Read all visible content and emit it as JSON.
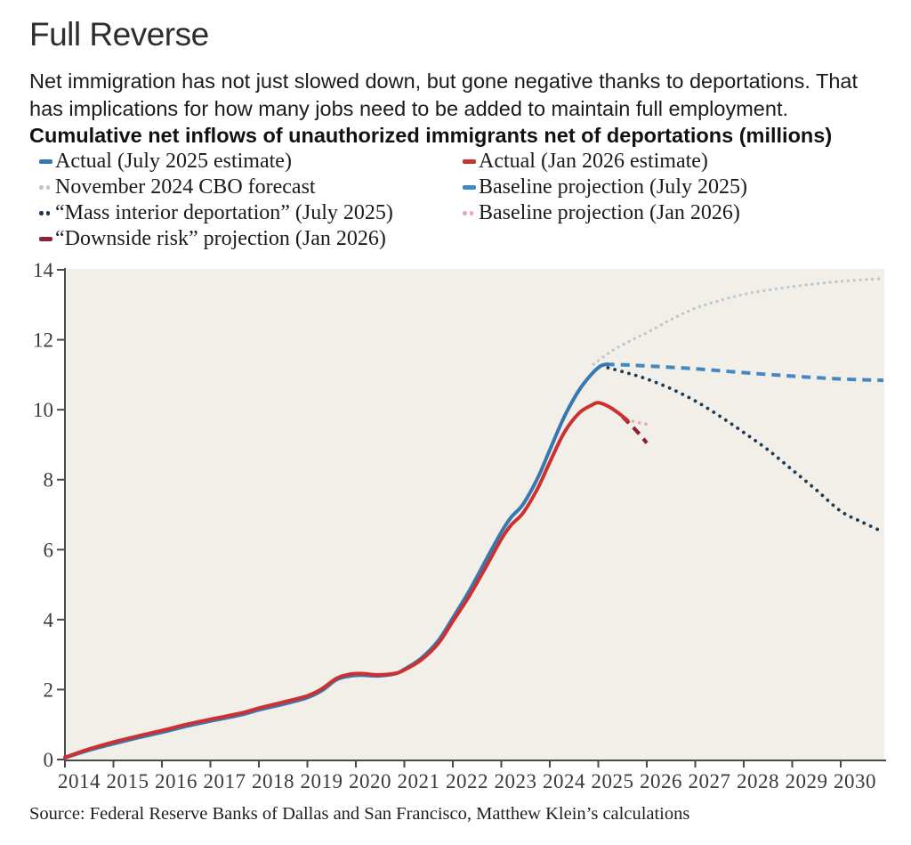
{
  "header": {
    "title": "Full Reverse",
    "subtitle_lines": [
      "Net immigration has not just slowed down, but gone negative thanks to deportations. That",
      "has implications for how many jobs need to be added to maintain full employment."
    ],
    "chart_heading": "Cumulative net inflows of unauthorized immigrants net of deportations (millions)"
  },
  "legend": {
    "left": [
      "actual_jul25",
      "cbo_nov24",
      "mass_deport_jul25",
      "downside_jan26"
    ],
    "right": [
      "actual_jan26",
      "baseline_jul25",
      "baseline_jan26"
    ]
  },
  "source": "Source: Federal Reserve Banks of Dallas and San Francisco, Matthew Klein’s calculations",
  "chart_data": {
    "type": "line",
    "title": "Cumulative net inflows of unauthorized immigrants net of deportations (millions)",
    "xlabel": "",
    "ylabel": "millions",
    "xlim": [
      2014,
      2030.9
    ],
    "ylim": [
      0,
      14
    ],
    "grid": false,
    "legend_position": "top-left, two columns",
    "plot_bg": "#f1efe7",
    "axis_color": "#4a4a4a",
    "y_ticks": [
      0,
      2,
      4,
      6,
      8,
      10,
      12,
      14
    ],
    "x_ticks": [
      2014,
      2015,
      2016,
      2017,
      2018,
      2019,
      2020,
      2021,
      2022,
      2023,
      2024,
      2025,
      2026,
      2027,
      2028,
      2029,
      2030
    ],
    "series": [
      {
        "id": "cbo_nov24",
        "name": "November 2024 CBO forecast",
        "color": "#b7c8d4",
        "style": "dotted",
        "width": 3.2,
        "points": [
          [
            2024.9,
            11.3
          ],
          [
            2025.3,
            11.7
          ],
          [
            2025.7,
            12.0
          ],
          [
            2026,
            12.2
          ],
          [
            2026.5,
            12.58
          ],
          [
            2027,
            12.9
          ],
          [
            2027.5,
            13.12
          ],
          [
            2028,
            13.3
          ],
          [
            2028.5,
            13.42
          ],
          [
            2029,
            13.52
          ],
          [
            2029.5,
            13.6
          ],
          [
            2030,
            13.67
          ],
          [
            2030.5,
            13.72
          ],
          [
            2030.88,
            13.75
          ]
        ]
      },
      {
        "id": "mass_deport_jul25",
        "name": "“Mass interior deportation” (July 2025)",
        "color": "#1c3a55",
        "style": "dotted",
        "width": 3.8,
        "points": [
          [
            2025.2,
            11.2
          ],
          [
            2025.6,
            11.05
          ],
          [
            2026,
            10.88
          ],
          [
            2026.5,
            10.6
          ],
          [
            2027,
            10.25
          ],
          [
            2027.5,
            9.82
          ],
          [
            2028,
            9.35
          ],
          [
            2028.5,
            8.85
          ],
          [
            2029,
            8.28
          ],
          [
            2029.5,
            7.7
          ],
          [
            2030,
            7.1
          ],
          [
            2030.45,
            6.78
          ],
          [
            2030.88,
            6.5
          ]
        ]
      },
      {
        "id": "baseline_jul25",
        "name": "Baseline projection (July 2025)",
        "color": "#4289c4",
        "style": "dashed",
        "width": 4,
        "points": [
          [
            2025.15,
            11.3
          ],
          [
            2025.6,
            11.28
          ],
          [
            2026,
            11.25
          ],
          [
            2027,
            11.17
          ],
          [
            2028,
            11.06
          ],
          [
            2029,
            10.96
          ],
          [
            2030,
            10.88
          ],
          [
            2030.88,
            10.84
          ]
        ]
      },
      {
        "id": "baseline_jan26",
        "name": "Baseline projection (Jan 2026)",
        "color": "#eba6ae",
        "style": "dotted",
        "width": 3.5,
        "points": [
          [
            2025.58,
            9.72
          ],
          [
            2025.75,
            9.66
          ],
          [
            2025.92,
            9.6
          ],
          [
            2026.08,
            9.58
          ]
        ]
      },
      {
        "id": "downside_jan26",
        "name": "“Downside risk” projection (Jan 2026)",
        "color": "#8e2336",
        "style": "dashed",
        "width": 4.2,
        "points": [
          [
            2025.5,
            9.8
          ],
          [
            2025.68,
            9.55
          ],
          [
            2025.85,
            9.3
          ],
          [
            2026,
            9.05
          ]
        ]
      },
      {
        "id": "actual_jul25",
        "name": "Actual (July 2025 estimate)",
        "color": "#3878b2",
        "style": "solid",
        "width": 4,
        "points": [
          [
            2014,
            0.05
          ],
          [
            2014.5,
            0.27
          ],
          [
            2015,
            0.45
          ],
          [
            2015.5,
            0.62
          ],
          [
            2016,
            0.78
          ],
          [
            2016.5,
            0.95
          ],
          [
            2017,
            1.1
          ],
          [
            2017.3,
            1.18
          ],
          [
            2017.7,
            1.3
          ],
          [
            2018,
            1.42
          ],
          [
            2018.5,
            1.58
          ],
          [
            2019,
            1.77
          ],
          [
            2019.3,
            1.97
          ],
          [
            2019.6,
            2.28
          ],
          [
            2019.85,
            2.38
          ],
          [
            2020.1,
            2.41
          ],
          [
            2020.45,
            2.39
          ],
          [
            2020.8,
            2.45
          ],
          [
            2021,
            2.58
          ],
          [
            2021.35,
            2.9
          ],
          [
            2021.7,
            3.4
          ],
          [
            2022,
            4.05
          ],
          [
            2022.35,
            4.85
          ],
          [
            2022.7,
            5.75
          ],
          [
            2023,
            6.5
          ],
          [
            2023.2,
            6.92
          ],
          [
            2023.45,
            7.3
          ],
          [
            2023.75,
            8.05
          ],
          [
            2024,
            8.85
          ],
          [
            2024.3,
            9.8
          ],
          [
            2024.6,
            10.55
          ],
          [
            2024.85,
            11.0
          ],
          [
            2025.05,
            11.25
          ],
          [
            2025.2,
            11.3
          ]
        ]
      },
      {
        "id": "actual_jan26",
        "name": "Actual (Jan 2026 estimate)",
        "color": "#cc3130",
        "style": "solid",
        "width": 4,
        "points": [
          [
            2014,
            0.06
          ],
          [
            2014.5,
            0.3
          ],
          [
            2015,
            0.5
          ],
          [
            2015.5,
            0.67
          ],
          [
            2016,
            0.83
          ],
          [
            2016.5,
            1.0
          ],
          [
            2017,
            1.15
          ],
          [
            2017.3,
            1.23
          ],
          [
            2017.7,
            1.35
          ],
          [
            2018,
            1.47
          ],
          [
            2018.5,
            1.64
          ],
          [
            2019,
            1.82
          ],
          [
            2019.3,
            2.02
          ],
          [
            2019.6,
            2.32
          ],
          [
            2019.85,
            2.43
          ],
          [
            2020.1,
            2.46
          ],
          [
            2020.45,
            2.42
          ],
          [
            2020.8,
            2.46
          ],
          [
            2021,
            2.56
          ],
          [
            2021.35,
            2.85
          ],
          [
            2021.7,
            3.32
          ],
          [
            2022,
            3.95
          ],
          [
            2022.35,
            4.7
          ],
          [
            2022.7,
            5.55
          ],
          [
            2023,
            6.3
          ],
          [
            2023.2,
            6.7
          ],
          [
            2023.45,
            7.05
          ],
          [
            2023.75,
            7.75
          ],
          [
            2024,
            8.5
          ],
          [
            2024.3,
            9.35
          ],
          [
            2024.6,
            9.9
          ],
          [
            2024.85,
            10.12
          ],
          [
            2025,
            10.2
          ],
          [
            2025.2,
            10.1
          ],
          [
            2025.4,
            9.92
          ],
          [
            2025.6,
            9.7
          ]
        ]
      }
    ]
  }
}
